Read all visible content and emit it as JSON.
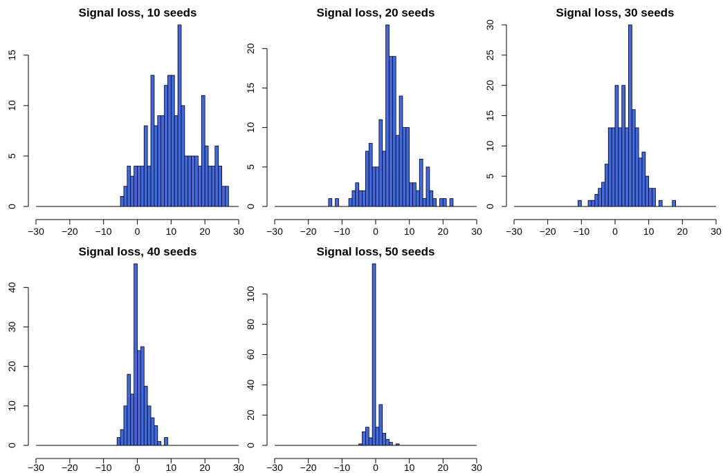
{
  "colors": {
    "bar_fill": "#4169E1",
    "bar_stroke": "#000000"
  },
  "chart_data": [
    {
      "type": "bar",
      "title": "Signal loss, 10 seeds",
      "xlabel": "",
      "ylabel": "",
      "xlim": [
        -30,
        30
      ],
      "ylim": [
        0,
        18
      ],
      "xticks": [
        -30,
        -20,
        -10,
        0,
        10,
        20,
        30
      ],
      "yticks": [
        0,
        5,
        10,
        15
      ],
      "bin_width": 1,
      "bin_starts": [
        -5,
        -4,
        -3,
        -2,
        -1,
        0,
        1,
        2,
        3,
        4,
        5,
        6,
        7,
        8,
        9,
        10,
        11,
        12,
        13,
        14,
        15,
        16,
        17,
        18,
        19,
        20,
        21,
        22,
        23,
        24,
        25,
        26
      ],
      "values": [
        1,
        2,
        4,
        3,
        4,
        4,
        4,
        8,
        4,
        13,
        8,
        9,
        9,
        12,
        13,
        13,
        9,
        18,
        10,
        5,
        5,
        5,
        5,
        4,
        11,
        6,
        4,
        4,
        6,
        4,
        2,
        2
      ]
    },
    {
      "type": "bar",
      "title": "Signal loss, 20 seeds",
      "xlabel": "",
      "ylabel": "",
      "xlim": [
        -30,
        30
      ],
      "ylim": [
        0,
        23
      ],
      "xticks": [
        -30,
        -20,
        -10,
        0,
        10,
        20,
        30
      ],
      "yticks": [
        0,
        5,
        10,
        15,
        20
      ],
      "bin_width": 1,
      "bin_starts": [
        -14,
        -13,
        -12,
        -11,
        -10,
        -9,
        -8,
        -7,
        -6,
        -5,
        -4,
        -3,
        -2,
        -1,
        0,
        1,
        2,
        3,
        4,
        5,
        6,
        7,
        8,
        9,
        10,
        11,
        12,
        13,
        14,
        15,
        16,
        17,
        18,
        19,
        20,
        21,
        22,
        23
      ],
      "values": [
        1,
        0,
        1,
        0,
        0,
        0,
        1,
        2,
        3,
        2,
        2,
        7,
        8,
        5,
        5,
        11,
        7,
        23,
        19,
        19,
        9,
        14,
        10,
        10,
        3,
        3,
        2,
        6,
        1,
        5,
        2,
        1,
        0,
        1,
        1,
        0,
        1,
        0
      ]
    },
    {
      "type": "bar",
      "title": "Signal loss, 30 seeds",
      "xlabel": "",
      "ylabel": "",
      "xlim": [
        -30,
        30
      ],
      "ylim": [
        0,
        30
      ],
      "xticks": [
        -30,
        -20,
        -10,
        0,
        10,
        20,
        30
      ],
      "yticks": [
        0,
        5,
        10,
        15,
        20,
        25,
        30
      ],
      "bin_width": 1,
      "bin_starts": [
        -11,
        -10,
        -9,
        -8,
        -7,
        -6,
        -5,
        -4,
        -3,
        -2,
        -1,
        0,
        1,
        2,
        3,
        4,
        5,
        6,
        7,
        8,
        9,
        10,
        11,
        12,
        13,
        14,
        15,
        16,
        17
      ],
      "values": [
        1,
        0,
        0,
        1,
        1,
        2,
        3,
        4,
        7,
        13,
        13,
        20,
        13,
        20,
        13,
        30,
        16,
        13,
        8,
        9,
        5,
        3,
        3,
        0,
        1,
        0,
        0,
        0,
        1
      ]
    },
    {
      "type": "bar",
      "title": "Signal loss, 40 seeds",
      "xlabel": "",
      "ylabel": "",
      "xlim": [
        -30,
        30
      ],
      "ylim": [
        0,
        46
      ],
      "xticks": [
        -30,
        -20,
        -10,
        0,
        10,
        20,
        30
      ],
      "yticks": [
        0,
        10,
        20,
        30,
        40
      ],
      "bin_width": 1,
      "bin_starts": [
        -6,
        -5,
        -4,
        -3,
        -2,
        -1,
        0,
        1,
        2,
        3,
        4,
        5,
        6,
        7,
        8
      ],
      "values": [
        2,
        4,
        10,
        18,
        13,
        46,
        24,
        25,
        15,
        10,
        7,
        5,
        1,
        0,
        2
      ]
    },
    {
      "type": "bar",
      "title": "Signal loss, 50 seeds",
      "xlabel": "",
      "ylabel": "",
      "xlim": [
        -30,
        30
      ],
      "ylim": [
        0,
        120
      ],
      "xticks": [
        -30,
        -20,
        -10,
        0,
        10,
        20,
        30
      ],
      "yticks": [
        0,
        20,
        40,
        60,
        80,
        100
      ],
      "bin_width": 1,
      "bin_starts": [
        -5,
        -4,
        -3,
        -2,
        -1,
        0,
        1,
        2,
        3,
        4,
        5,
        6
      ],
      "values": [
        1,
        9,
        12,
        5,
        120,
        12,
        27,
        8,
        4,
        2,
        0,
        1
      ]
    }
  ]
}
